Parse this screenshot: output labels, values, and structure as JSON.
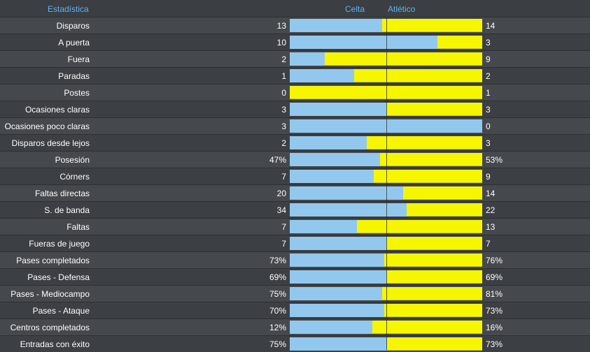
{
  "header": {
    "stat_label": "Estadística",
    "home_team": "Celta",
    "away_team": "Atlético"
  },
  "colors": {
    "home": "#93c8ee",
    "away": "#f6f600",
    "header_text": "#5fb3f0"
  },
  "stats": [
    {
      "label": "Disparos",
      "home": "13",
      "away": "14",
      "home_share": 0.481
    },
    {
      "label": "A puerta",
      "home": "10",
      "away": "3",
      "home_share": 0.769
    },
    {
      "label": "Fuera",
      "home": "2",
      "away": "9",
      "home_share": 0.182
    },
    {
      "label": "Paradas",
      "home": "1",
      "away": "2",
      "home_share": 0.333
    },
    {
      "label": "Postes",
      "home": "0",
      "away": "1",
      "home_share": 0.0
    },
    {
      "label": "Ocasiones claras",
      "home": "3",
      "away": "3",
      "home_share": 0.5
    },
    {
      "label": "Ocasiones poco claras",
      "home": "3",
      "away": "0",
      "home_share": 1.0
    },
    {
      "label": "Disparos desde lejos",
      "home": "2",
      "away": "3",
      "home_share": 0.4
    },
    {
      "label": "Posesión",
      "home": "47%",
      "away": "53%",
      "home_share": 0.47
    },
    {
      "label": "Córners",
      "home": "7",
      "away": "9",
      "home_share": 0.4375
    },
    {
      "label": "Faltas directas",
      "home": "20",
      "away": "14",
      "home_share": 0.588
    },
    {
      "label": "S. de banda",
      "home": "34",
      "away": "22",
      "home_share": 0.607
    },
    {
      "label": "Faltas",
      "home": "7",
      "away": "13",
      "home_share": 0.35
    },
    {
      "label": "Fueras de juego",
      "home": "7",
      "away": "7",
      "home_share": 0.5
    },
    {
      "label": "Pases completados",
      "home": "73%",
      "away": "76%",
      "home_share": 0.49
    },
    {
      "label": "Pases - Defensa",
      "home": "69%",
      "away": "69%",
      "home_share": 0.5
    },
    {
      "label": "Pases - Mediocampo",
      "home": "75%",
      "away": "81%",
      "home_share": 0.481
    },
    {
      "label": "Pases - Ataque",
      "home": "70%",
      "away": "73%",
      "home_share": 0.49
    },
    {
      "label": "Centros completados",
      "home": "12%",
      "away": "16%",
      "home_share": 0.429
    },
    {
      "label": "Entradas con éxito",
      "home": "75%",
      "away": "73%",
      "home_share": 0.507
    }
  ]
}
